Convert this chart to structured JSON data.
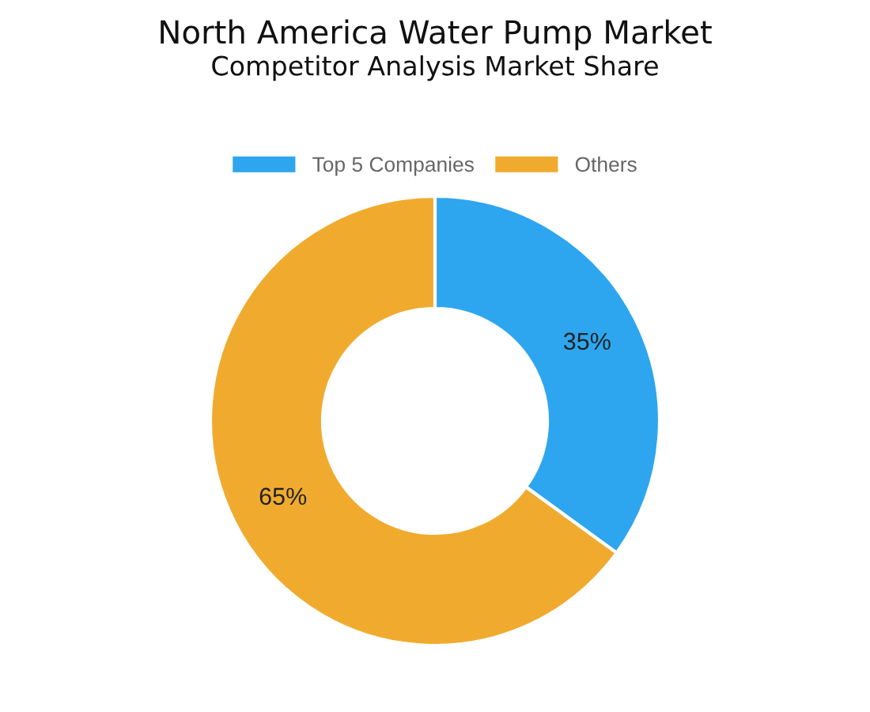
{
  "chart_data": {
    "type": "donut",
    "title": "North America Water Pump Market",
    "subtitle": "Competitor Analysis Market Share",
    "categories": [
      "Top 5 Companies",
      "Others"
    ],
    "values": [
      35,
      65
    ],
    "colors": [
      "#2ea6ef",
      "#f0ab2f"
    ],
    "value_labels": [
      "35%",
      "65%"
    ],
    "legend": "top"
  }
}
